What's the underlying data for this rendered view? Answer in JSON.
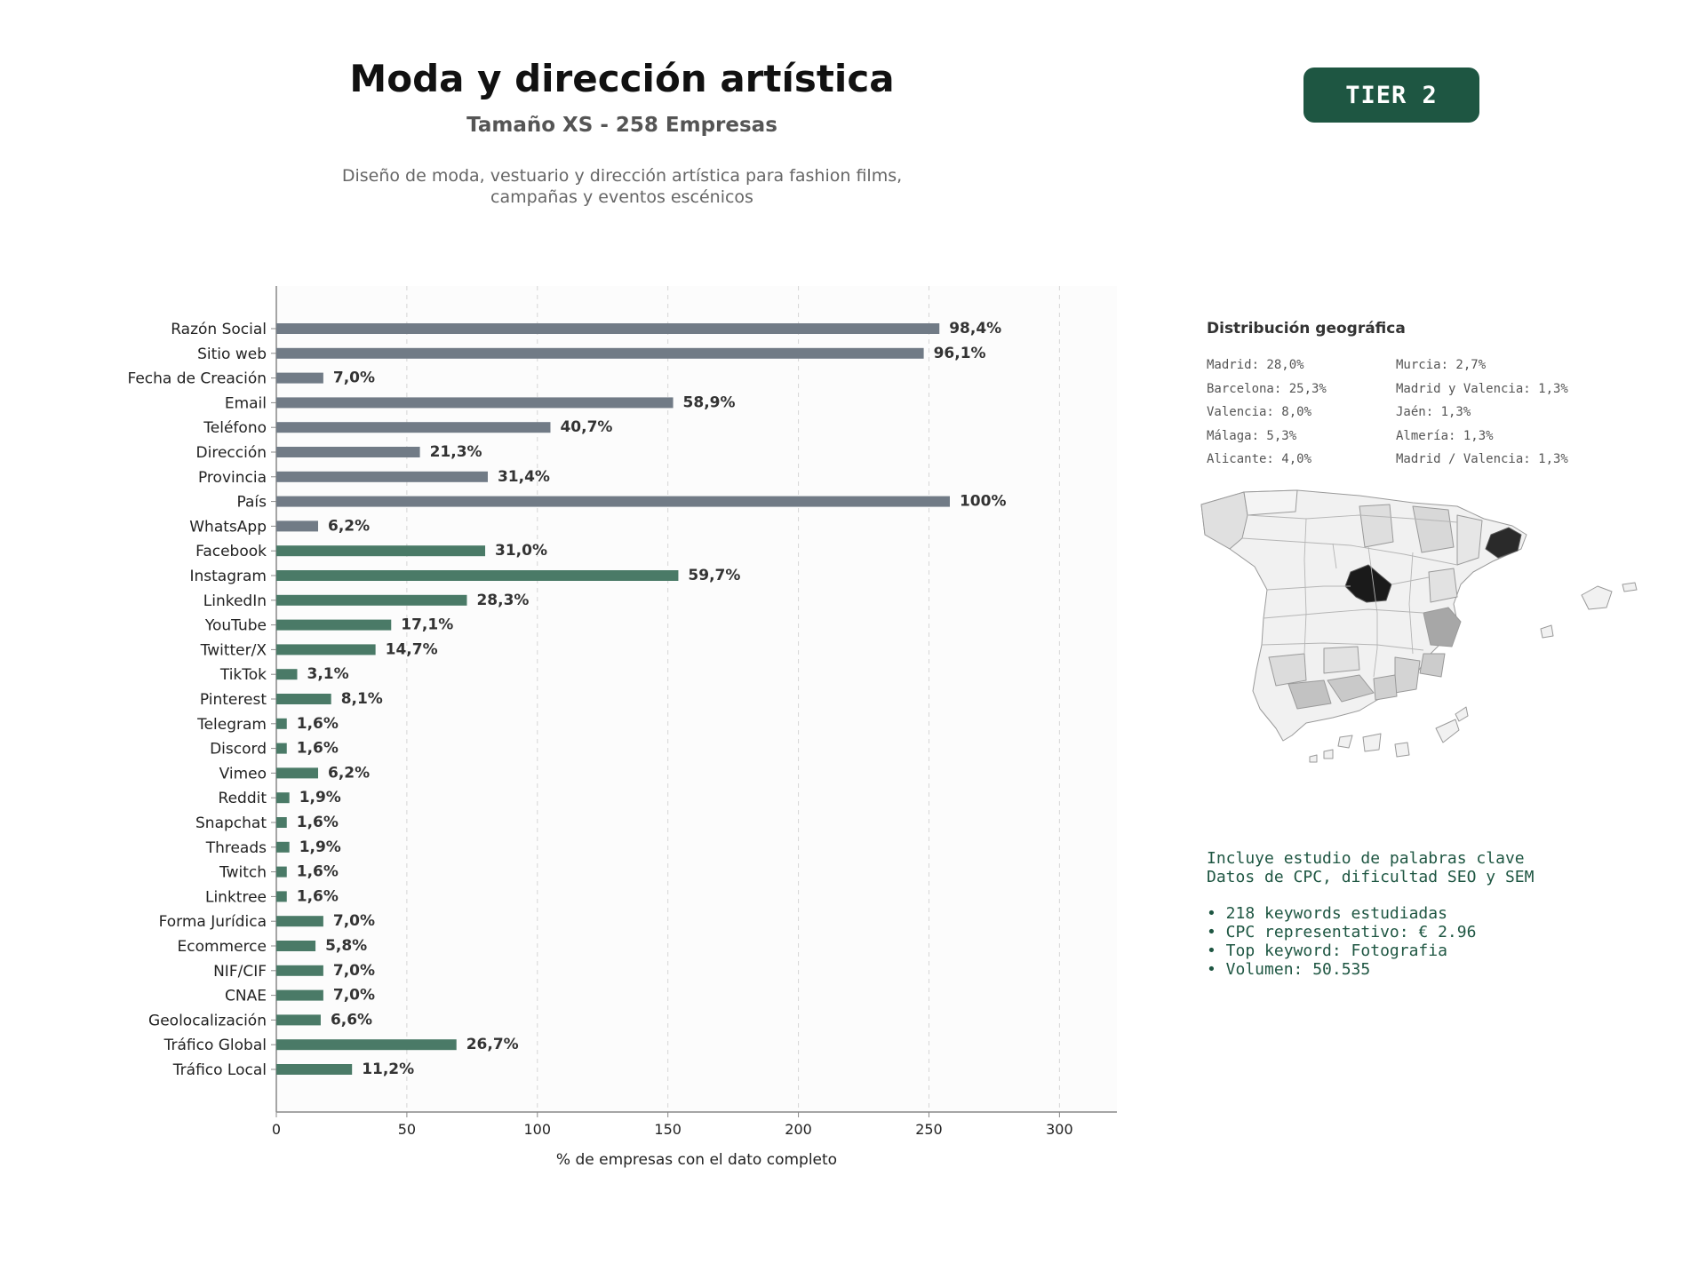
{
  "header": {
    "title": "Moda y dirección artística",
    "subtitle": "Tamaño XS - 258 Empresas",
    "description_lines": [
      "Diseño de moda, vestuario y dirección artística para fashion films,",
      "campañas y eventos escénicos"
    ],
    "tier_label": "TIER 2"
  },
  "colors": {
    "accent": "#1e5642",
    "bar_gray": "#717b86",
    "bar_green": "#4a7a67"
  },
  "chart_data": {
    "type": "bar",
    "orientation": "horizontal",
    "xlabel": "% de empresas con el dato completo",
    "ylabel": "",
    "xlim": [
      0,
      322
    ],
    "xticks": [
      0,
      50,
      100,
      150,
      200,
      250,
      300
    ],
    "grid": "vertical dashed",
    "categories": [
      "Razón Social",
      "Sitio web",
      "Fecha de Creación",
      "Email",
      "Teléfono",
      "Dirección",
      "Provincia",
      "País",
      "WhatsApp",
      "Facebook",
      "Instagram",
      "LinkedIn",
      "YouTube",
      "Twitter/X",
      "TikTok",
      "Pinterest",
      "Telegram",
      "Discord",
      "Vimeo",
      "Reddit",
      "Snapchat",
      "Threads",
      "Twitch",
      "Linktree",
      "Forma Jurídica",
      "Ecommerce",
      "NIF/CIF",
      "CNAE",
      "Geolocalización",
      "Tráfico Global",
      "Tráfico Local"
    ],
    "values": [
      254,
      248,
      18,
      152,
      105,
      55,
      81,
      258,
      16,
      80,
      154,
      73,
      44,
      38,
      8,
      21,
      4,
      4,
      16,
      5,
      4,
      5,
      4,
      4,
      18,
      15,
      18,
      18,
      17,
      69,
      29
    ],
    "labels": [
      "98,4%",
      "96,1%",
      "7,0%",
      "58,9%",
      "40,7%",
      "21,3%",
      "31,4%",
      "100%",
      "6,2%",
      "31,0%",
      "59,7%",
      "28,3%",
      "17,1%",
      "14,7%",
      "3,1%",
      "8,1%",
      "1,6%",
      "1,6%",
      "6,2%",
      "1,9%",
      "1,6%",
      "1,9%",
      "1,6%",
      "1,6%",
      "7,0%",
      "5,8%",
      "7,0%",
      "7,0%",
      "6,6%",
      "26,7%",
      "11,2%"
    ],
    "groups": [
      "gray",
      "gray",
      "gray",
      "gray",
      "gray",
      "gray",
      "gray",
      "gray",
      "gray",
      "green",
      "green",
      "green",
      "green",
      "green",
      "green",
      "green",
      "green",
      "green",
      "green",
      "green",
      "green",
      "green",
      "green",
      "green",
      "green",
      "green",
      "green",
      "green",
      "green",
      "green",
      "green"
    ]
  },
  "geo": {
    "title": "Distribución geográfica",
    "left": [
      "Madrid: 28,0%",
      "Barcelona: 25,3%",
      "Valencia: 8,0%",
      "Málaga: 5,3%",
      "Alicante: 4,0%"
    ],
    "right": [
      "Murcia: 2,7%",
      "Madrid y Valencia: 1,3%",
      "Jaén: 1,3%",
      "Almería: 1,3%",
      "Madrid / Valencia: 1,3%"
    ]
  },
  "keywords": {
    "intro": [
      "Incluye estudio de palabras clave",
      "Datos de CPC, dificultad SEO y SEM"
    ],
    "bullets": [
      "• 218 keywords estudiadas",
      "• CPC representativo: € 2.96",
      "• Top keyword: Fotografia",
      "• Volumen: 50.535"
    ]
  }
}
